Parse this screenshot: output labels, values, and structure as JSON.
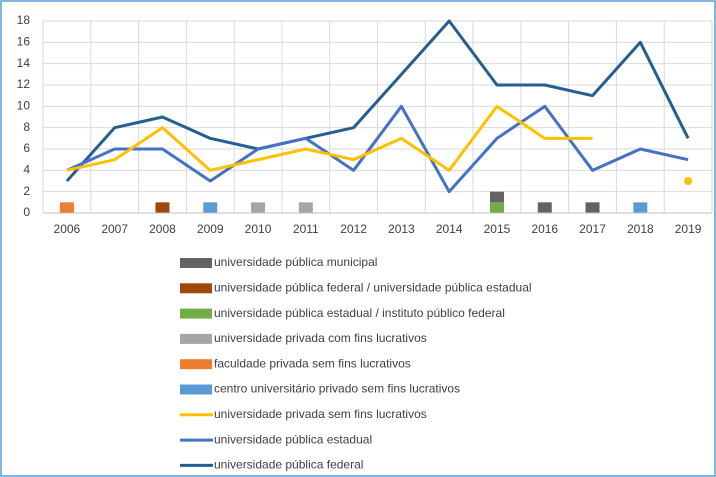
{
  "chart_data": {
    "type": "combo",
    "categories": [
      "2006",
      "2007",
      "2008",
      "2009",
      "2010",
      "2011",
      "2012",
      "2013",
      "2014",
      "2015",
      "2016",
      "2017",
      "2018",
      "2019"
    ],
    "ylim": [
      0,
      18
    ],
    "yticks": [
      0,
      2,
      4,
      6,
      8,
      10,
      12,
      14,
      16,
      18
    ],
    "grid": true,
    "series": [
      {
        "name": "universidade pública federal",
        "type": "line",
        "color": "#255e91",
        "values": [
          3,
          8,
          9,
          7,
          6,
          7,
          8,
          13,
          18,
          12,
          12,
          11,
          16,
          7
        ]
      },
      {
        "name": "universidade pública estadual",
        "type": "line",
        "color": "#4472c4",
        "values": [
          4,
          6,
          6,
          3,
          6,
          7,
          4,
          10,
          2,
          7,
          10,
          4,
          6,
          5
        ]
      },
      {
        "name": "universidade privada sem fins lucrativos",
        "type": "line",
        "color": "#ffc000",
        "values": [
          4,
          5,
          8,
          4,
          5,
          6,
          5,
          7,
          4,
          10,
          7,
          7,
          null,
          3
        ]
      },
      {
        "name": "centro universitário privado sem fins lucrativos",
        "type": "bar",
        "color": "#5b9bd5",
        "values": [
          null,
          null,
          null,
          1,
          null,
          null,
          null,
          null,
          null,
          null,
          null,
          null,
          1,
          null
        ]
      },
      {
        "name": "faculdade privada sem fins lucrativos",
        "type": "bar",
        "color": "#ed7d31",
        "values": [
          1,
          null,
          null,
          null,
          null,
          null,
          null,
          null,
          null,
          null,
          null,
          null,
          null,
          null
        ]
      },
      {
        "name": "universidade privada com fins lucrativos",
        "type": "bar",
        "color": "#a5a5a5",
        "values": [
          null,
          null,
          null,
          null,
          1,
          1,
          null,
          null,
          null,
          null,
          null,
          null,
          null,
          null
        ]
      },
      {
        "name": "universidade pública estadual / instituto público federal",
        "type": "bar",
        "color": "#70ad47",
        "values": [
          null,
          null,
          null,
          null,
          null,
          null,
          null,
          null,
          null,
          1,
          null,
          null,
          null,
          null
        ]
      },
      {
        "name": "universidade pública federal / universidade pública estadual",
        "type": "bar",
        "color": "#9e480e",
        "values": [
          null,
          null,
          1,
          null,
          null,
          null,
          null,
          null,
          null,
          null,
          null,
          null,
          null,
          null
        ]
      },
      {
        "name": "universidade pública municipal",
        "type": "bar",
        "color": "#636363",
        "values": [
          null,
          null,
          null,
          null,
          null,
          null,
          null,
          null,
          null,
          1,
          1,
          1,
          null,
          null
        ]
      }
    ]
  }
}
